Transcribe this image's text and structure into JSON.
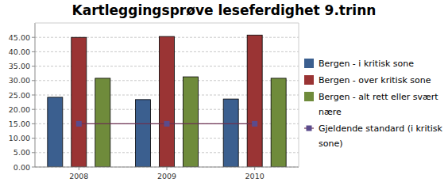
{
  "chart_data": {
    "type": "bar",
    "title": "Kartleggingsprøve leseferdighet 9.trinn",
    "categories": [
      "2008",
      "2009",
      "2010"
    ],
    "series": [
      {
        "name": "Bergen - i kritisk sone",
        "color": "#3b5f8f",
        "values": [
          24.2,
          23.4,
          23.6
        ]
      },
      {
        "name": "Bergen - over kritisk sone",
        "color": "#9a3434",
        "values": [
          45.0,
          45.3,
          45.8
        ]
      },
      {
        "name": "Bergen - alt rett eller svært nære",
        "color": "#6f8b3b",
        "values": [
          30.8,
          31.3,
          30.8
        ]
      },
      {
        "name": "Gjeldende standard (i kritisk sone)",
        "color": "#5b4b8c",
        "type": "line",
        "marker": "square",
        "values": [
          15,
          15,
          15
        ]
      }
    ],
    "ylim": [
      0,
      50
    ],
    "yticks": [
      {
        "value": 0,
        "label": "0.00"
      },
      {
        "value": 5,
        "label": "5.00"
      },
      {
        "value": 10,
        "label": "10.00"
      },
      {
        "value": 15,
        "label": "15.00"
      },
      {
        "value": 20,
        "label": "20.00"
      },
      {
        "value": 25,
        "label": "25.00"
      },
      {
        "value": 30,
        "label": "30.00"
      },
      {
        "value": 35,
        "label": "35.00"
      },
      {
        "value": 40,
        "label": "40.00"
      },
      {
        "value": 45,
        "label": "45.00"
      }
    ],
    "grid": true,
    "legend": "right"
  }
}
